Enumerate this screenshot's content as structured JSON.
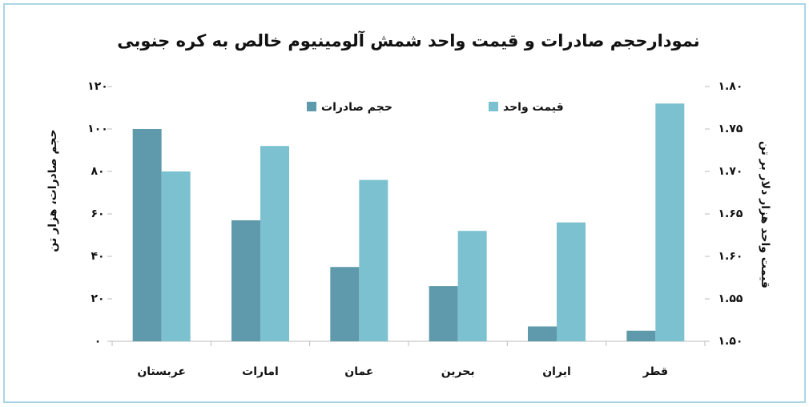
{
  "chart_data": {
    "type": "bar",
    "title": "نمودارحجم صادرات و قیمت واحد شمش آلومینیوم خالص به کره جنوبی",
    "y_label": "حجم صادرات، هزار تن",
    "y2_label": "قیمت واحد هزار دلار بر تن",
    "categories": [
      "عربستان",
      "امارات",
      "عمان",
      "بحرین",
      "ایران",
      "قطر"
    ],
    "series": [
      {
        "name": "حجم صادرات",
        "color": "#5e9aab",
        "values": [
          100,
          57,
          35,
          26,
          7,
          5
        ]
      },
      {
        "name": "قیمت واحد",
        "color": "#7cc1d0",
        "axis": "y2",
        "values": [
          1.7,
          1.73,
          1.69,
          1.63,
          1.64,
          1.78
        ]
      }
    ],
    "ylim": [
      0,
      120
    ],
    "yticks": [
      {
        "value": 0,
        "label": "۰"
      },
      {
        "value": 20,
        "label": "۲۰"
      },
      {
        "value": 40,
        "label": "۴۰"
      },
      {
        "value": 60,
        "label": "۶۰"
      },
      {
        "value": 80,
        "label": "۸۰"
      },
      {
        "value": 100,
        "label": "۱۰۰"
      },
      {
        "value": 120,
        "label": "۱۲۰"
      }
    ],
    "y2lim": [
      1.5,
      1.8
    ],
    "y2ticks": [
      {
        "value": 1.5,
        "label": "۱.۵۰"
      },
      {
        "value": 1.55,
        "label": "۱.۵۵"
      },
      {
        "value": 1.6,
        "label": "۱.۶۰"
      },
      {
        "value": 1.65,
        "label": "۱.۶۵"
      },
      {
        "value": 1.7,
        "label": "۱.۷۰"
      },
      {
        "value": 1.75,
        "label": "۱.۷۵"
      },
      {
        "value": 1.8,
        "label": "۱.۸۰"
      }
    ],
    "grid": false
  }
}
